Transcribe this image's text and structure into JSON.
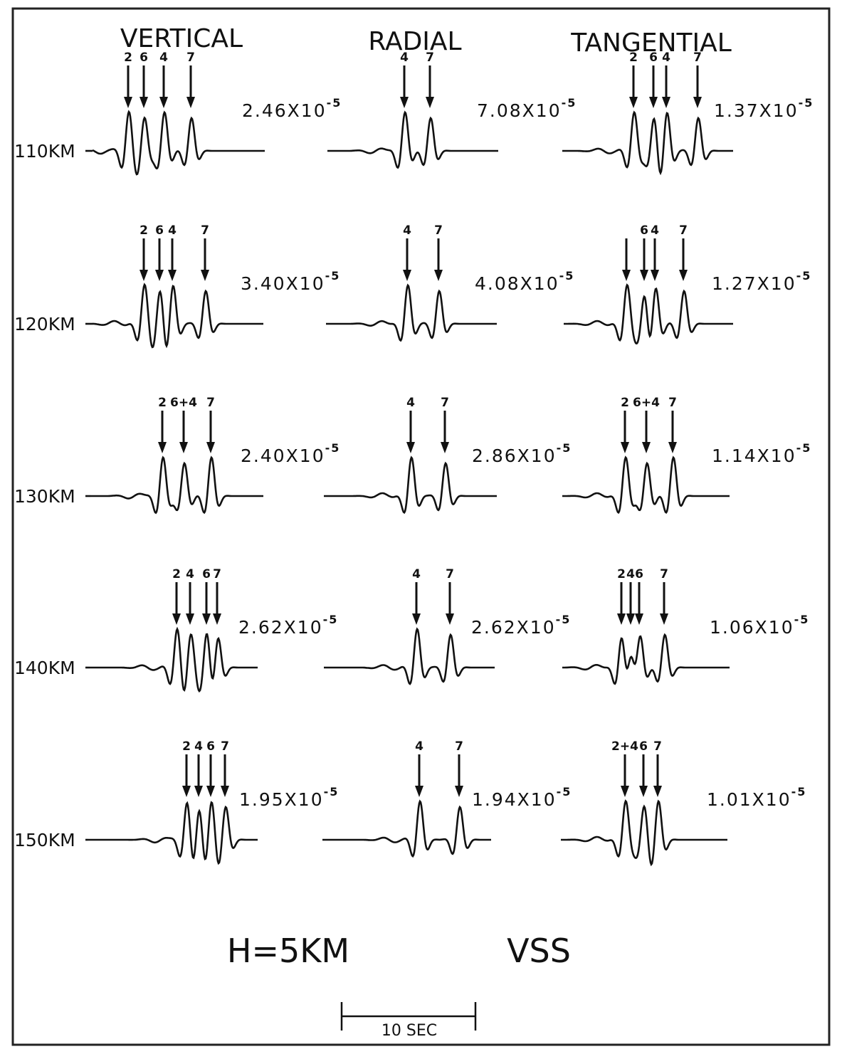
{
  "columns": [
    "VERTICAL",
    "RADIAL",
    "TANGENTIAL"
  ],
  "rows": [
    {
      "distance": "110KM",
      "cells": [
        {
          "amplitude": "2.46X10",
          "exponent": "-5",
          "arrows": [
            "2",
            "6",
            "4",
            "7"
          ]
        },
        {
          "amplitude": "7.08X10",
          "exponent": "-5",
          "arrows": [
            "4",
            "7"
          ]
        },
        {
          "amplitude": "1.37X10",
          "exponent": "-5",
          "arrows": [
            "2",
            "6",
            "4",
            "7"
          ]
        }
      ]
    },
    {
      "distance": "120KM",
      "cells": [
        {
          "amplitude": "3.40X10",
          "exponent": "-5",
          "arrows": [
            "2",
            "6",
            "4",
            "7"
          ]
        },
        {
          "amplitude": "4.08X10",
          "exponent": "-5",
          "arrows": [
            "4",
            "7"
          ]
        },
        {
          "amplitude": "1.27X10",
          "exponent": "-5",
          "arrows": [
            "6",
            "4",
            "7"
          ]
        }
      ]
    },
    {
      "distance": "130KM",
      "cells": [
        {
          "amplitude": "2.40X10",
          "exponent": "-5",
          "arrows": [
            "2",
            "6+4",
            "7"
          ]
        },
        {
          "amplitude": "2.86X10",
          "exponent": "-5",
          "arrows": [
            "4",
            "7"
          ]
        },
        {
          "amplitude": "1.14X10",
          "exponent": "-5",
          "arrows": [
            "2",
            "6+4",
            "7"
          ]
        }
      ]
    },
    {
      "distance": "140KM",
      "cells": [
        {
          "amplitude": "2.62X10",
          "exponent": "-5",
          "arrows": [
            "2",
            "4",
            "6",
            "7"
          ]
        },
        {
          "amplitude": "2.62X10",
          "exponent": "-5",
          "arrows": [
            "4",
            "7"
          ]
        },
        {
          "amplitude": "1.06X10",
          "exponent": "-5",
          "arrows": [
            "2",
            "4",
            "6",
            "7"
          ]
        }
      ]
    },
    {
      "distance": "150KM",
      "cells": [
        {
          "amplitude": "1.95X10",
          "exponent": "-5",
          "arrows": [
            "2",
            "4",
            "6",
            "7"
          ]
        },
        {
          "amplitude": "1.94X10",
          "exponent": "-5",
          "arrows": [
            "4",
            "7"
          ]
        },
        {
          "amplitude": "1.01X10",
          "exponent": "-5",
          "arrows": [
            "2+4",
            "6",
            "7"
          ]
        }
      ]
    }
  ],
  "footer": {
    "depth": "H=5KM",
    "mechanism": "VSS",
    "scale": "10 SEC"
  }
}
